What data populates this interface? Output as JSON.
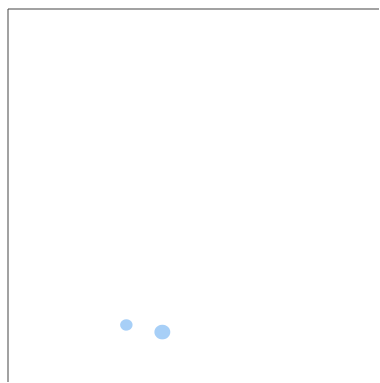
{
  "chart_data": {
    "type": "scatter",
    "title": "",
    "xlabel": "",
    "ylabel": "",
    "xlim": [
      0,
      100
    ],
    "ylim": [
      0,
      100
    ],
    "grid": false,
    "marker_color": "#a7cff7",
    "points": [
      {
        "x": 31.9,
        "y": 15.3,
        "size": 1
      },
      {
        "x": 41.6,
        "y": 13.4,
        "size": 1.65
      }
    ]
  }
}
